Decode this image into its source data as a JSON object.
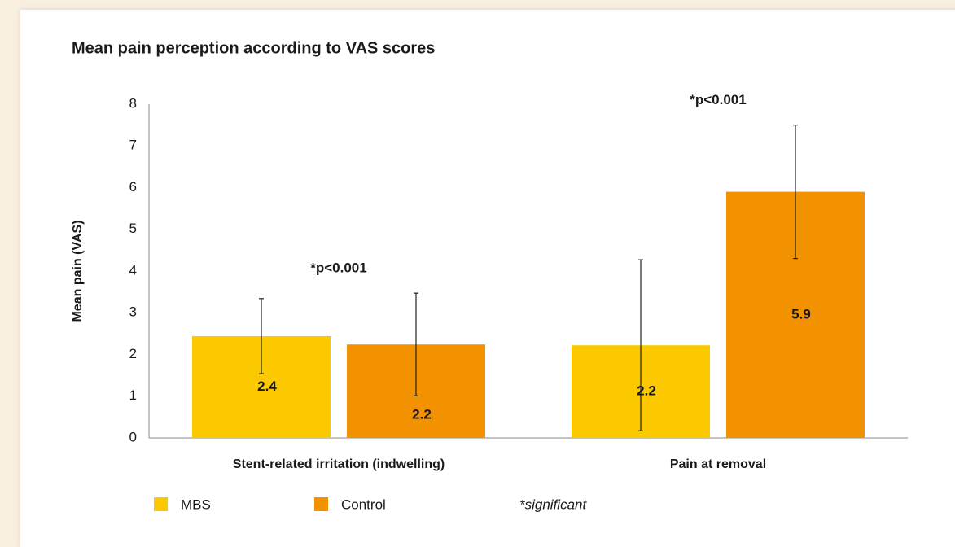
{
  "chart_data": {
    "type": "bar",
    "title": "Mean pain perception according to VAS scores",
    "ylabel": "Mean pain (VAS)",
    "categories": [
      "Stent-related irritation (indwelling)",
      "Pain at removal"
    ],
    "series": [
      {
        "name": "MBS",
        "color": "#fcc800",
        "values": [
          2.44,
          2.22
        ],
        "value_labels": [
          "2.4",
          "2.2"
        ],
        "errors": [
          0.9,
          2.05
        ]
      },
      {
        "name": "Control",
        "color": "#f39200",
        "values": [
          2.24,
          5.9
        ],
        "value_labels": [
          "2.2",
          "5.9"
        ],
        "errors": [
          1.23,
          1.6
        ]
      }
    ],
    "annotations": [
      "*p<0.001",
      "*p<0.001"
    ],
    "footnote": "*significant",
    "ylim": [
      0,
      8
    ],
    "yticks": [
      0,
      1,
      2,
      3,
      4,
      5,
      6,
      7,
      8
    ],
    "grid": false
  }
}
